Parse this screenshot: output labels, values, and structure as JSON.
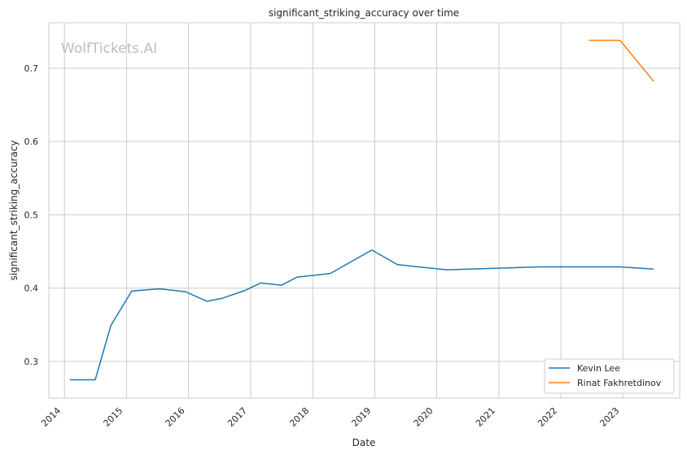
{
  "chart_data": {
    "type": "line",
    "title": "significant_striking_accuracy over time",
    "xlabel": "Date",
    "ylabel": "significant_striking_accuracy",
    "watermark": "WolfTickets.AI",
    "xlim": [
      "2013-10-01",
      "2023-12-01"
    ],
    "ylim": [
      0.25,
      0.762
    ],
    "x_ticks": [
      "2014",
      "2015",
      "2016",
      "2017",
      "2018",
      "2019",
      "2020",
      "2021",
      "2022",
      "2023"
    ],
    "y_ticks": [
      "0.3",
      "0.4",
      "0.5",
      "0.6",
      "0.7"
    ],
    "grid": true,
    "legend_position": "lower-right",
    "series": [
      {
        "name": "Kevin Lee",
        "color": "#1f77b4",
        "points": [
          {
            "x": "2014-02-01",
            "y": 0.275
          },
          {
            "x": "2014-07-01",
            "y": 0.275
          },
          {
            "x": "2014-10-01",
            "y": 0.349
          },
          {
            "x": "2015-02-01",
            "y": 0.396
          },
          {
            "x": "2015-07-15",
            "y": 0.399
          },
          {
            "x": "2015-12-15",
            "y": 0.395
          },
          {
            "x": "2016-04-20",
            "y": 0.382
          },
          {
            "x": "2016-07-15",
            "y": 0.386
          },
          {
            "x": "2016-12-01",
            "y": 0.397
          },
          {
            "x": "2017-03-01",
            "y": 0.407
          },
          {
            "x": "2017-07-01",
            "y": 0.404
          },
          {
            "x": "2017-10-01",
            "y": 0.415
          },
          {
            "x": "2018-04-15",
            "y": 0.42
          },
          {
            "x": "2018-12-15",
            "y": 0.452
          },
          {
            "x": "2019-05-15",
            "y": 0.432
          },
          {
            "x": "2020-03-01",
            "y": 0.425
          },
          {
            "x": "2021-09-01",
            "y": 0.429
          },
          {
            "x": "2022-12-15",
            "y": 0.429
          },
          {
            "x": "2023-07-01",
            "y": 0.426
          }
        ]
      },
      {
        "name": "Rinat Fakhretdinov",
        "color": "#ff7f0e",
        "points": [
          {
            "x": "2022-06-15",
            "y": 0.738
          },
          {
            "x": "2022-12-15",
            "y": 0.738
          },
          {
            "x": "2023-07-01",
            "y": 0.682
          }
        ]
      }
    ]
  }
}
